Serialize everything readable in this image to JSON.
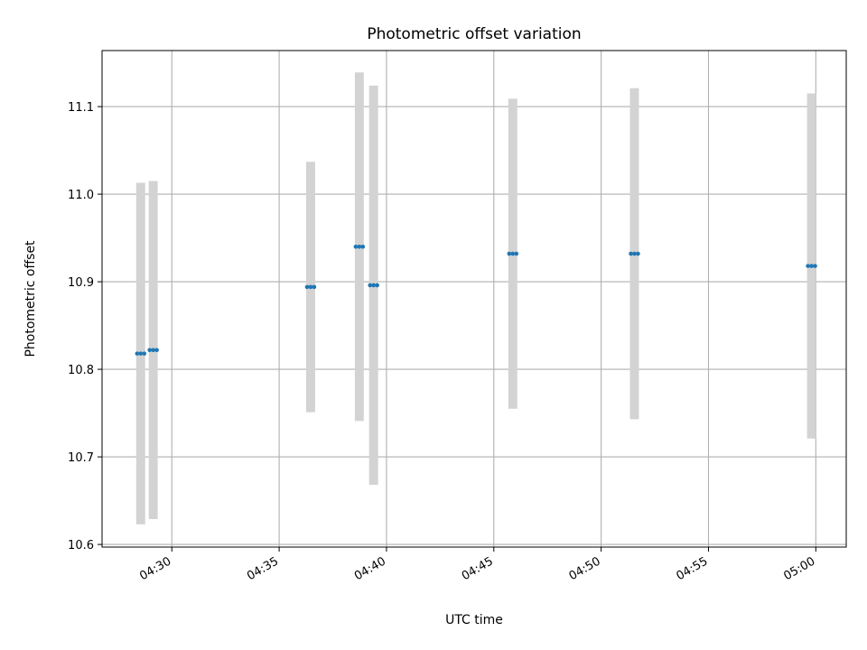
{
  "chart_data": {
    "type": "scatter",
    "title": "Photometric offset variation",
    "xlabel": "UTC time",
    "ylabel": "Photometric offset",
    "x_axis": "time",
    "xlim": [
      "04:26:45",
      "05:01:25"
    ],
    "ylim": [
      10.597,
      11.164
    ],
    "x_ticks": [
      "04:30",
      "04:35",
      "04:40",
      "04:45",
      "04:50",
      "04:55",
      "05:00"
    ],
    "y_ticks": [
      10.6,
      10.7,
      10.8,
      10.9,
      11.0,
      11.1
    ],
    "grid": true,
    "point_color": "#1f77b4",
    "errorbar_color": "#d3d3d3",
    "groups": [
      {
        "times": [
          "04:28:23",
          "04:28:33",
          "04:28:43"
        ],
        "value": 10.818,
        "error": 0.195
      },
      {
        "times": [
          "04:28:58",
          "04:29:08",
          "04:29:18"
        ],
        "value": 10.822,
        "error": 0.193
      },
      {
        "times": [
          "04:36:18",
          "04:36:28",
          "04:36:38"
        ],
        "value": 10.894,
        "error": 0.143
      },
      {
        "times": [
          "04:38:34",
          "04:38:44",
          "04:38:54"
        ],
        "value": 10.94,
        "error": 0.199
      },
      {
        "times": [
          "04:39:14",
          "04:39:24",
          "04:39:34"
        ],
        "value": 10.896,
        "error": 0.228
      },
      {
        "times": [
          "04:45:43",
          "04:45:53",
          "04:46:03"
        ],
        "value": 10.932,
        "error": 0.177
      },
      {
        "times": [
          "04:51:23",
          "04:51:33",
          "04:51:43"
        ],
        "value": 10.932,
        "error": 0.189
      },
      {
        "times": [
          "04:59:38",
          "04:59:48",
          "04:59:58"
        ],
        "value": 10.918,
        "error": 0.197
      }
    ]
  }
}
